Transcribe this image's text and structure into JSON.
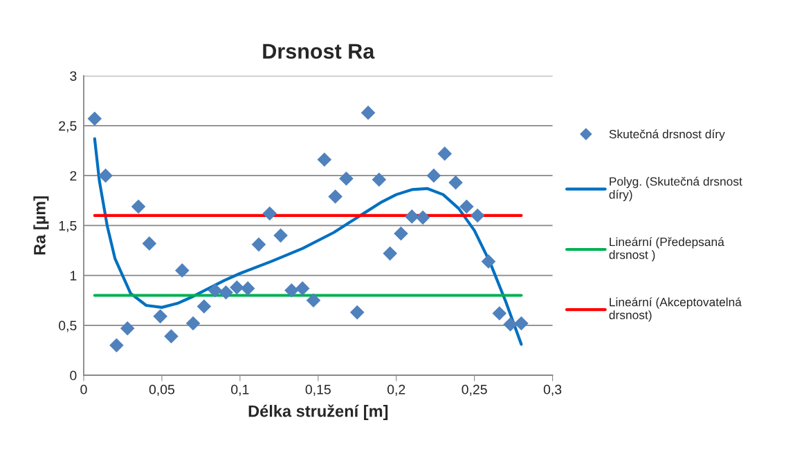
{
  "chart_data": {
    "type": "scatter",
    "title": "Drsnost Ra",
    "xlabel": "Délka stružení [m]",
    "ylabel": "Ra [µm]",
    "x": [
      0.007,
      0.014,
      0.021,
      0.028,
      0.035,
      0.042,
      0.049,
      0.056,
      0.063,
      0.07,
      0.077,
      0.084,
      0.091,
      0.098,
      0.105,
      0.112,
      0.119,
      0.126,
      0.133,
      0.14,
      0.147,
      0.154,
      0.161,
      0.168,
      0.175,
      0.182,
      0.189,
      0.196,
      0.203,
      0.21,
      0.217,
      0.224,
      0.231,
      0.238,
      0.245,
      0.252,
      0.259,
      0.266,
      0.273,
      0.28
    ],
    "series": [
      {
        "name": "Skutečná drsnost díry",
        "marker": "diamond",
        "color": "#4f81bd",
        "values": [
          2.57,
          2.0,
          0.3,
          0.47,
          1.69,
          1.32,
          0.59,
          0.39,
          1.05,
          0.52,
          0.69,
          0.85,
          0.83,
          0.88,
          0.87,
          1.31,
          1.62,
          1.4,
          0.85,
          0.87,
          0.75,
          2.16,
          1.79,
          1.97,
          0.63,
          2.63,
          1.96,
          1.22,
          1.42,
          1.59,
          1.58,
          2.0,
          2.22,
          1.93,
          1.69,
          1.6,
          1.14,
          0.62,
          0.51,
          0.52
        ]
      },
      {
        "name": "Polyg. (Skutečná drsnost díry)",
        "type": "line",
        "marker": "none",
        "color": "#0070c0",
        "x": [
          0.007,
          0.01,
          0.015,
          0.02,
          0.03,
          0.04,
          0.05,
          0.06,
          0.07,
          0.08,
          0.09,
          0.1,
          0.12,
          0.14,
          0.16,
          0.17,
          0.18,
          0.19,
          0.2,
          0.21,
          0.22,
          0.23,
          0.24,
          0.25,
          0.26,
          0.27,
          0.28
        ],
        "values": [
          2.37,
          1.95,
          1.5,
          1.17,
          0.82,
          0.7,
          0.68,
          0.72,
          0.79,
          0.87,
          0.95,
          1.02,
          1.14,
          1.27,
          1.43,
          1.53,
          1.63,
          1.73,
          1.81,
          1.86,
          1.87,
          1.81,
          1.67,
          1.45,
          1.13,
          0.74,
          0.31
        ]
      },
      {
        "name": "Lineární (Předepsaná drsnost )",
        "type": "line",
        "marker": "none",
        "color": "#00b050",
        "x": [
          0.007,
          0.28
        ],
        "values": [
          0.8,
          0.8
        ]
      },
      {
        "name": "Lineární (Akceptovatelná drsnost)",
        "type": "line",
        "marker": "none",
        "color": "#ff0000",
        "x": [
          0.007,
          0.28
        ],
        "values": [
          1.6,
          1.6
        ]
      }
    ],
    "xlim": [
      0,
      0.3
    ],
    "xticks": [
      0,
      {
        "value": 0.05,
        "label": "0,05"
      },
      {
        "value": 0.1,
        "label": "0,1"
      },
      {
        "value": 0.15,
        "label": "0,15"
      },
      {
        "value": 0.2,
        "label": "0,2"
      },
      {
        "value": 0.25,
        "label": "0,25"
      },
      {
        "value": 0.3,
        "label": "0,3"
      }
    ],
    "ylim": [
      0,
      3
    ],
    "yticks": [
      0,
      {
        "value": 0.5,
        "label": "0,5"
      },
      1,
      {
        "value": 1.5,
        "label": "1,5"
      },
      2,
      {
        "value": 2.5,
        "label": "2,5"
      },
      3
    ],
    "grid": "y",
    "legend": "right"
  }
}
